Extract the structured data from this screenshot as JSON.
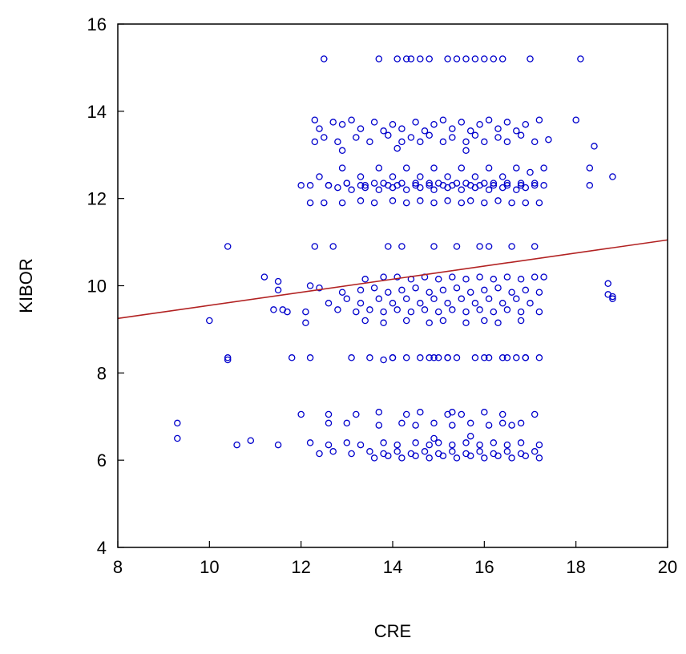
{
  "chart_data": {
    "type": "scatter",
    "title": "",
    "xlabel": "CRE",
    "ylabel": "KIBOR",
    "xlim": [
      8,
      20
    ],
    "ylim": [
      4,
      16
    ],
    "xticks": [
      "8",
      "10",
      "12",
      "14",
      "16",
      "18",
      "20"
    ],
    "yticks": [
      "4",
      "6",
      "8",
      "10",
      "12",
      "14",
      "16"
    ],
    "grid": false,
    "legend": "none",
    "marker_color": "#0000cc",
    "line_color": "#b22222",
    "fit_line": {
      "x": [
        8,
        20
      ],
      "y": [
        9.25,
        11.05
      ]
    },
    "series": [
      {
        "x": [
          12.5,
          13.7,
          14.1,
          14.3,
          14.4,
          14.8,
          15.2,
          15.6,
          15.8,
          16.0,
          16.2,
          16.4,
          17.0,
          18.1,
          14.6,
          15.4,
          12.3,
          12.4,
          12.7,
          12.9,
          13.1,
          13.3,
          13.6,
          13.8,
          14.0,
          14.2,
          14.5,
          14.7,
          14.9,
          15.1,
          15.3,
          15.5,
          15.7,
          15.9,
          16.1,
          16.3,
          16.5,
          16.7,
          16.9,
          17.2,
          18.0,
          12.3,
          12.5,
          12.8,
          13.2,
          13.5,
          13.9,
          14.2,
          14.4,
          14.6,
          14.8,
          15.1,
          15.3,
          15.6,
          15.8,
          16.0,
          16.3,
          16.5,
          16.8,
          17.1,
          17.4,
          18.4,
          12.4,
          12.9,
          13.3,
          13.7,
          14.0,
          14.3,
          14.6,
          14.9,
          15.2,
          15.5,
          15.8,
          16.1,
          16.4,
          16.7,
          17.0,
          17.3,
          12.6,
          13.0,
          13.4,
          13.8,
          14.1,
          14.5,
          14.8,
          15.0,
          15.3,
          15.6,
          15.9,
          16.2,
          16.5,
          16.8,
          17.1,
          12.2,
          12.5,
          12.9,
          13.3,
          13.6,
          14.0,
          14.3,
          14.6,
          14.9,
          15.2,
          15.5,
          15.7,
          16.0,
          16.3,
          16.6,
          16.9,
          17.2,
          18.3,
          12.0,
          12.2,
          12.6,
          13.0,
          13.3,
          13.6,
          13.9,
          14.2,
          14.5,
          14.8,
          15.1,
          15.4,
          15.7,
          16.0,
          16.2,
          16.5,
          16.8,
          17.1,
          17.3,
          18.3,
          18.8,
          12.8,
          13.1,
          13.4,
          13.7,
          14.0,
          14.3,
          14.6,
          14.9,
          15.2,
          15.5,
          15.8,
          16.1,
          16.4,
          16.7,
          16.9,
          12.9,
          14.1,
          15.6,
          10.4,
          12.3,
          12.7,
          13.9,
          14.2,
          14.9,
          15.4,
          15.9,
          16.1,
          16.6,
          17.1,
          11.2,
          11.5,
          12.2,
          13.4,
          13.8,
          14.1,
          14.4,
          14.7,
          15.0,
          15.3,
          15.6,
          15.9,
          16.2,
          16.5,
          16.8,
          17.1,
          17.3,
          18.7,
          11.5,
          12.4,
          12.9,
          13.3,
          13.6,
          13.9,
          14.2,
          14.5,
          14.8,
          15.1,
          15.4,
          15.7,
          16.0,
          16.3,
          16.6,
          16.9,
          17.2,
          18.7,
          18.8,
          11.4,
          11.7,
          12.6,
          13.0,
          13.3,
          13.7,
          14.0,
          14.3,
          14.6,
          14.9,
          15.2,
          15.5,
          15.8,
          16.1,
          16.4,
          16.7,
          17.0,
          18.8,
          11.6,
          12.1,
          12.8,
          13.2,
          13.5,
          13.8,
          14.1,
          14.4,
          14.7,
          15.0,
          15.3,
          15.6,
          15.9,
          16.2,
          16.5,
          16.8,
          17.2,
          10.4,
          12.2,
          13.1,
          13.5,
          14.0,
          14.6,
          14.9,
          15.2,
          15.8,
          16.1,
          16.5,
          16.9,
          10.0,
          12.1,
          13.4,
          13.8,
          14.3,
          14.8,
          15.1,
          15.6,
          16.0,
          16.3,
          16.8,
          10.4,
          11.8,
          13.8,
          14.0,
          14.3,
          14.8,
          15.0,
          15.2,
          15.4,
          16.0,
          16.4,
          16.7,
          16.9,
          17.2,
          12.0,
          12.6,
          13.2,
          13.7,
          14.3,
          14.6,
          15.2,
          15.3,
          15.5,
          16.0,
          16.4,
          17.1,
          9.3,
          12.6,
          13.0,
          13.7,
          14.2,
          14.5,
          14.9,
          15.3,
          15.7,
          16.1,
          16.4,
          16.6,
          16.8,
          9.3,
          10.6,
          10.9,
          11.5,
          12.2,
          12.6,
          13.0,
          13.3,
          13.8,
          14.1,
          14.5,
          14.8,
          15.0,
          15.3,
          15.6,
          15.9,
          16.2,
          16.5,
          16.8,
          17.2,
          12.4,
          12.7,
          13.1,
          13.5,
          13.8,
          14.1,
          14.4,
          14.7,
          15.0,
          15.3,
          15.6,
          15.9,
          16.2,
          16.5,
          16.8,
          17.1,
          14.9,
          15.7,
          13.6,
          13.9,
          14.2,
          14.5,
          14.8,
          15.1,
          15.4,
          15.7,
          16.0,
          16.3,
          16.6,
          16.9,
          17.2
        ],
        "y": [
          15.2,
          15.2,
          15.2,
          15.2,
          15.2,
          15.2,
          15.2,
          15.2,
          15.2,
          15.2,
          15.2,
          15.2,
          15.2,
          15.2,
          15.2,
          15.2,
          13.8,
          13.6,
          13.75,
          13.7,
          13.8,
          13.6,
          13.75,
          13.55,
          13.7,
          13.6,
          13.75,
          13.55,
          13.7,
          13.8,
          13.6,
          13.75,
          13.55,
          13.7,
          13.8,
          13.6,
          13.75,
          13.55,
          13.7,
          13.8,
          13.8,
          13.3,
          13.4,
          13.3,
          13.4,
          13.3,
          13.45,
          13.3,
          13.4,
          13.3,
          13.45,
          13.3,
          13.4,
          13.3,
          13.45,
          13.3,
          13.4,
          13.3,
          13.45,
          13.3,
          13.35,
          13.2,
          12.5,
          12.7,
          12.5,
          12.7,
          12.5,
          12.7,
          12.5,
          12.7,
          12.5,
          12.7,
          12.5,
          12.7,
          12.5,
          12.7,
          12.6,
          12.7,
          12.3,
          12.35,
          12.3,
          12.35,
          12.3,
          12.35,
          12.3,
          12.35,
          12.3,
          12.35,
          12.3,
          12.35,
          12.3,
          12.35,
          12.3,
          11.9,
          11.9,
          11.9,
          11.95,
          11.9,
          11.95,
          11.9,
          11.95,
          11.9,
          11.95,
          11.9,
          11.95,
          11.9,
          11.95,
          11.9,
          11.9,
          11.9,
          12.3,
          12.3,
          12.3,
          12.3,
          12.35,
          12.3,
          12.35,
          12.3,
          12.35,
          12.3,
          12.35,
          12.3,
          12.35,
          12.3,
          12.35,
          12.3,
          12.35,
          12.3,
          12.35,
          12.3,
          12.7,
          12.5,
          12.25,
          12.2,
          12.25,
          12.2,
          12.25,
          12.2,
          12.25,
          12.2,
          12.25,
          12.2,
          12.25,
          12.2,
          12.25,
          12.2,
          12.25,
          13.1,
          13.15,
          13.1,
          10.9,
          10.9,
          10.9,
          10.9,
          10.9,
          10.9,
          10.9,
          10.9,
          10.9,
          10.9,
          10.9,
          10.2,
          10.1,
          10.0,
          10.15,
          10.2,
          10.2,
          10.15,
          10.2,
          10.15,
          10.2,
          10.15,
          10.2,
          10.15,
          10.2,
          10.15,
          10.2,
          10.2,
          10.05,
          9.9,
          9.95,
          9.85,
          9.9,
          9.95,
          9.85,
          9.9,
          9.95,
          9.85,
          9.9,
          9.95,
          9.85,
          9.9,
          9.95,
          9.85,
          9.9,
          9.85,
          9.8,
          9.75,
          9.45,
          9.4,
          9.6,
          9.7,
          9.6,
          9.7,
          9.6,
          9.7,
          9.6,
          9.7,
          9.6,
          9.7,
          9.6,
          9.7,
          9.6,
          9.7,
          9.6,
          9.7,
          9.45,
          9.4,
          9.45,
          9.4,
          9.45,
          9.4,
          9.45,
          9.4,
          9.45,
          9.4,
          9.45,
          9.4,
          9.45,
          9.4,
          9.45,
          9.4,
          9.4,
          8.35,
          8.35,
          8.35,
          8.35,
          8.35,
          8.35,
          8.35,
          8.35,
          8.35,
          8.35,
          8.35,
          8.35,
          9.2,
          9.15,
          9.2,
          9.15,
          9.2,
          9.15,
          9.2,
          9.15,
          9.2,
          9.15,
          9.2,
          8.3,
          8.35,
          8.3,
          8.35,
          8.35,
          8.35,
          8.35,
          8.35,
          8.35,
          8.35,
          8.35,
          8.35,
          8.35,
          8.35,
          7.05,
          7.05,
          7.05,
          7.1,
          7.05,
          7.1,
          7.05,
          7.1,
          7.05,
          7.1,
          7.05,
          7.05,
          6.85,
          6.85,
          6.85,
          6.8,
          6.85,
          6.8,
          6.85,
          6.8,
          6.85,
          6.8,
          6.85,
          6.8,
          6.85,
          6.5,
          6.35,
          6.45,
          6.35,
          6.4,
          6.35,
          6.4,
          6.35,
          6.4,
          6.35,
          6.4,
          6.35,
          6.4,
          6.35,
          6.4,
          6.35,
          6.4,
          6.35,
          6.4,
          6.35,
          6.15,
          6.2,
          6.15,
          6.2,
          6.15,
          6.2,
          6.15,
          6.2,
          6.15,
          6.2,
          6.15,
          6.2,
          6.15,
          6.2,
          6.15,
          6.2,
          6.5,
          6.55,
          6.05,
          6.1,
          6.05,
          6.1,
          6.05,
          6.1,
          6.05,
          6.1,
          6.05,
          6.1,
          6.05,
          6.1,
          6.05
        ]
      }
    ]
  }
}
